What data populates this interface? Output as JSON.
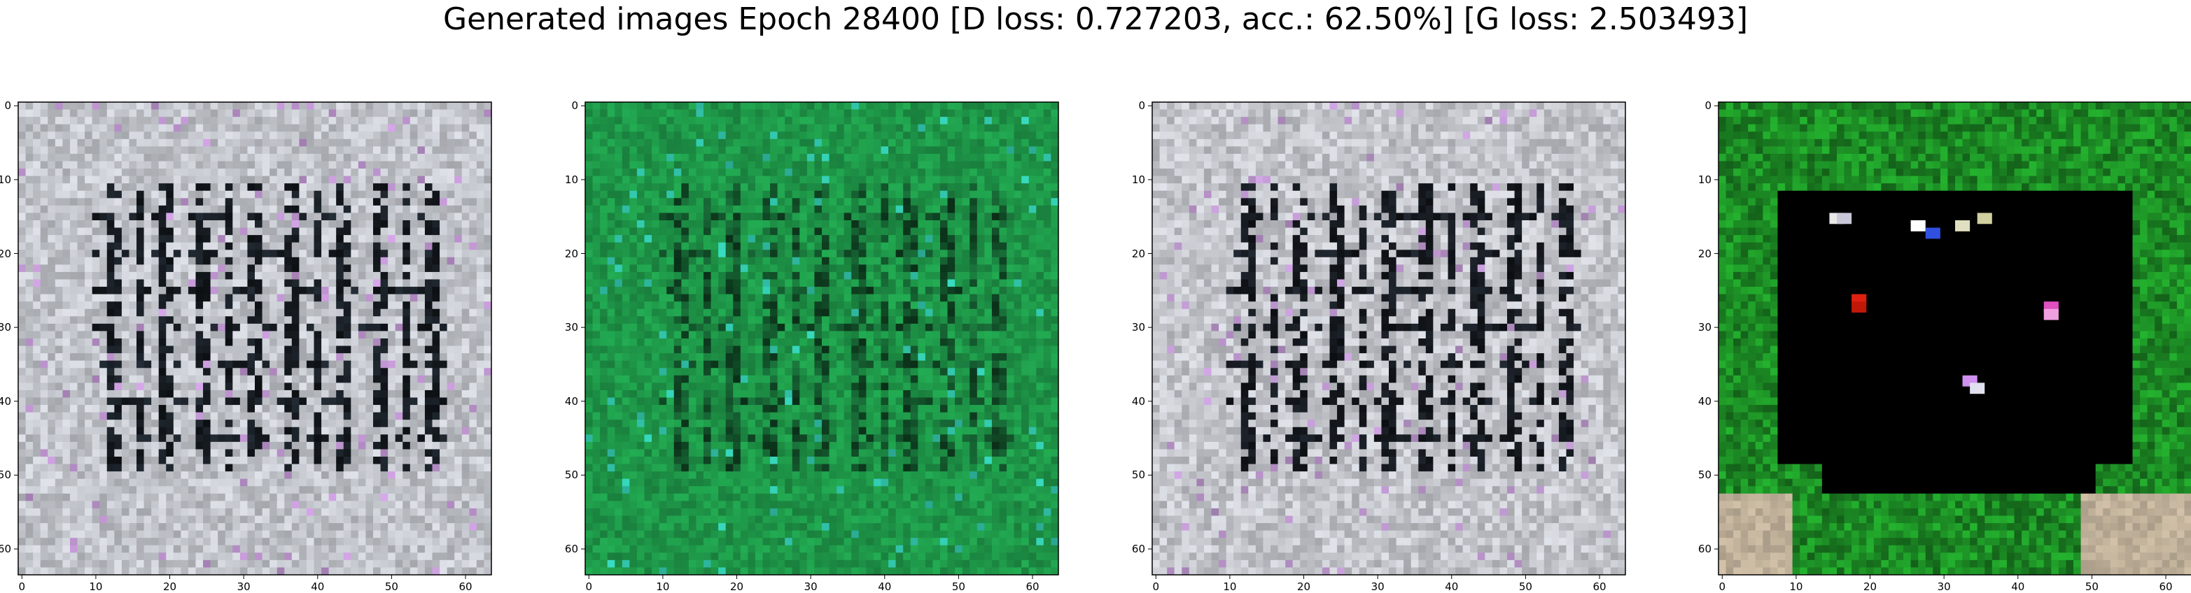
{
  "figure": {
    "title": "Generated images Epoch 28400 [D loss: 0.727203, acc.: 62.50%] [G loss: 2.503493]"
  },
  "axes": {
    "xticks": [
      "0",
      "10",
      "20",
      "30",
      "40",
      "50",
      "60"
    ],
    "yticks": [
      "0",
      "10",
      "20",
      "30",
      "40",
      "50",
      "60"
    ],
    "range": [
      0,
      63
    ]
  },
  "panels": [
    {
      "name": "generated-image-1",
      "palette": "gray-grid",
      "base": "#c7cad0",
      "dark": "#101418",
      "accent": "#b48cc4"
    },
    {
      "name": "generated-image-2",
      "palette": "green-grid",
      "base": "#1f9a4a",
      "dark": "#0d3a1e",
      "accent": "#2fb8a0"
    },
    {
      "name": "generated-image-3",
      "palette": "gray-grid",
      "base": "#c9cbd1",
      "dark": "#0f1216",
      "accent": "#b08cc0"
    },
    {
      "name": "generated-image-4",
      "palette": "black-screen",
      "base": "#1c8a24",
      "dark": "#000000",
      "accent": "#d02010"
    }
  ]
}
